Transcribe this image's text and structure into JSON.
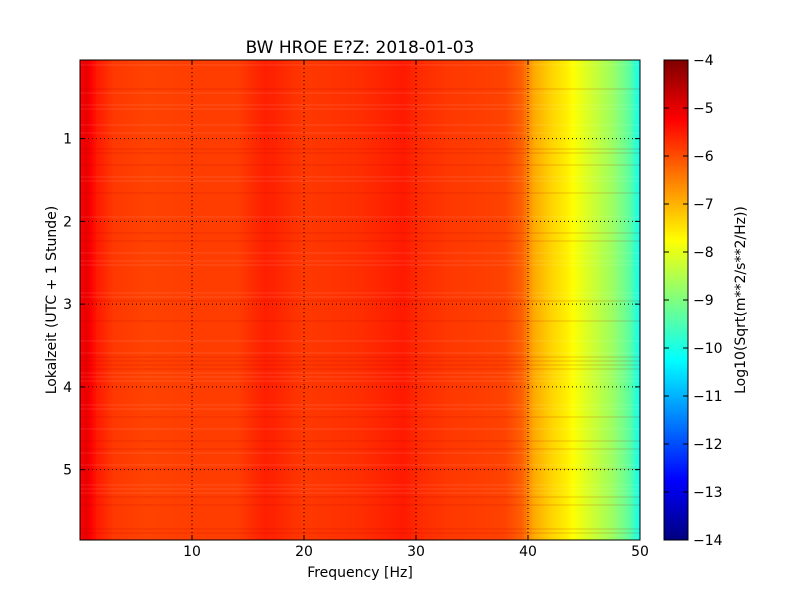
{
  "chart_data": {
    "type": "heatmap",
    "title": "BW HROE E?Z: 2018-01-03",
    "xlabel": "Frequency [Hz]",
    "ylabel": "Lokalzeit (UTC + 1 Stunde)",
    "xlim": [
      0,
      50
    ],
    "ylim": [
      5.85,
      0.05
    ],
    "y_inverted": true,
    "x_ticks": [
      10,
      20,
      30,
      40,
      50
    ],
    "x_tick_labels": [
      "10",
      "20",
      "30",
      "40",
      "50"
    ],
    "y_ticks": [
      1,
      2,
      3,
      4,
      5
    ],
    "y_tick_labels": [
      "1",
      "2",
      "3",
      "4",
      "5"
    ],
    "grid": true,
    "colormap": "jet",
    "colorbar": {
      "label": "Log10(Sqrt(m**2/s**2/Hz))",
      "vmin": -14,
      "vmax": -4,
      "ticks": [
        -4,
        -5,
        -6,
        -7,
        -8,
        -9,
        -10,
        -11,
        -12,
        -13,
        -14
      ],
      "tick_labels": [
        "−4",
        "−5",
        "−6",
        "−7",
        "−8",
        "−9",
        "−10",
        "−11",
        "−12",
        "−13",
        "−14"
      ]
    },
    "spectrum_profile": {
      "frequency_hz": [
        0,
        0.5,
        1.5,
        3,
        6,
        10,
        14,
        16.5,
        17.5,
        20,
        25,
        28,
        29,
        30,
        33,
        36,
        38,
        39.5,
        40.5,
        42,
        43.5,
        44.5,
        46,
        47.5,
        49,
        50
      ],
      "value": [
        -5.3,
        -5.0,
        -5.5,
        -5.8,
        -5.9,
        -5.85,
        -5.85,
        -5.55,
        -5.6,
        -5.8,
        -5.7,
        -5.55,
        -5.5,
        -5.65,
        -5.8,
        -5.85,
        -5.9,
        -6.2,
        -6.9,
        -7.3,
        -7.6,
        -7.9,
        -8.3,
        -8.7,
        -9.3,
        -10.1
      ]
    }
  }
}
